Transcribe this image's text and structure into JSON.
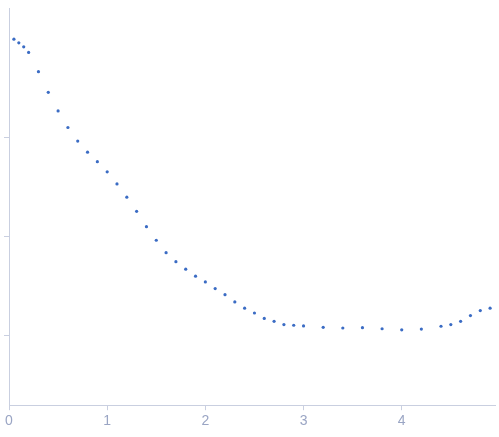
{
  "chart_data": {
    "type": "scatter",
    "x": [
      0.05,
      0.1,
      0.15,
      0.2,
      0.3,
      0.4,
      0.5,
      0.6,
      0.7,
      0.8,
      0.9,
      1.0,
      1.1,
      1.2,
      1.3,
      1.4,
      1.5,
      1.6,
      1.7,
      1.8,
      1.9,
      2.0,
      2.1,
      2.2,
      2.3,
      2.4,
      2.5,
      2.6,
      2.7,
      2.8,
      2.9,
      3.0,
      3.2,
      3.4,
      3.6,
      3.8,
      4.0,
      4.2,
      4.4,
      4.5,
      4.6,
      4.7,
      4.8,
      4.9
    ],
    "values": [
      9.8,
      9.0,
      8.2,
      7.2,
      4.6,
      2.85,
      1.85,
      1.26,
      0.92,
      0.71,
      0.57,
      0.45,
      0.34,
      0.25,
      0.18,
      0.126,
      0.092,
      0.069,
      0.056,
      0.047,
      0.04,
      0.035,
      0.03,
      0.026,
      0.022,
      0.019,
      0.017,
      0.015,
      0.014,
      0.013,
      0.0128,
      0.0126,
      0.0122,
      0.012,
      0.0121,
      0.0118,
      0.0115,
      0.0117,
      0.0125,
      0.013,
      0.014,
      0.016,
      0.018,
      0.019
    ],
    "color": "#3b6cc4",
    "marker": "circle",
    "xlim": [
      0,
      4.95
    ],
    "xticks": [
      0,
      1,
      2,
      3,
      4
    ],
    "ylim": [
      0.002,
      20
    ],
    "yticks": [
      0.01,
      0.1,
      1
    ],
    "log": "y",
    "grid": false,
    "tick_labels": "x"
  }
}
